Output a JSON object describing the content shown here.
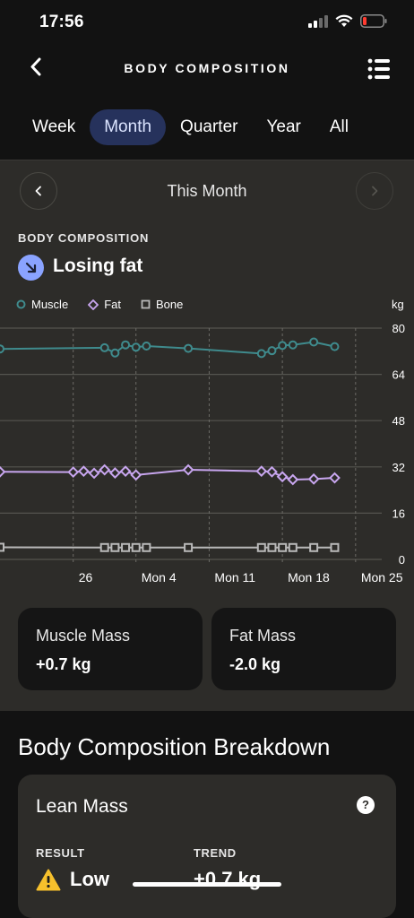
{
  "status": {
    "time": "17:56"
  },
  "header": {
    "title": "BODY COMPOSITION"
  },
  "tabs": [
    {
      "label": "Week",
      "active": false
    },
    {
      "label": "Month",
      "active": true
    },
    {
      "label": "Quarter",
      "active": false
    },
    {
      "label": "Year",
      "active": false
    },
    {
      "label": "All",
      "active": false
    }
  ],
  "period": {
    "label": "This Month"
  },
  "summary": {
    "eyebrow": "BODY COMPOSITION",
    "trend": "Losing fat"
  },
  "legend": {
    "muscle": "Muscle",
    "fat": "Fat",
    "bone": "Bone",
    "unit": "kg"
  },
  "colors": {
    "muscle": "#3f8b8d",
    "fat": "#c8a6ef",
    "bone": "#b9b9b9",
    "accent": "#26325c",
    "trend_icon": "#8aa3ff"
  },
  "chart_data": {
    "type": "line",
    "ylabel": "kg",
    "ylim": [
      0,
      80
    ],
    "yticks": [
      0,
      16,
      32,
      48,
      64,
      80
    ],
    "xlim": [
      -9,
      27.5
    ],
    "xticks": [
      {
        "label": "26",
        "day": -2
      },
      {
        "label": "Mon 4",
        "day": 4
      },
      {
        "label": "Mon 11",
        "day": 11
      },
      {
        "label": "Mon 18",
        "day": 18
      },
      {
        "label": "Mon 25",
        "day": 25
      }
    ],
    "grid": true,
    "legend_position": "top-left",
    "series": [
      {
        "name": "Muscle",
        "marker": "circle",
        "points": [
          [
            -9,
            72.8
          ],
          [
            1,
            73.2
          ],
          [
            2,
            71.4
          ],
          [
            3,
            74.2
          ],
          [
            4,
            73.4
          ],
          [
            5,
            73.8
          ],
          [
            9,
            73.0
          ],
          [
            16,
            71.2
          ],
          [
            17,
            72.2
          ],
          [
            18,
            74.0
          ],
          [
            19,
            74.2
          ],
          [
            21,
            75.2
          ],
          [
            23,
            73.6
          ]
        ]
      },
      {
        "name": "Fat",
        "marker": "diamond",
        "points": [
          [
            -9,
            30.3
          ],
          [
            -2,
            30.2
          ],
          [
            -1,
            30.5
          ],
          [
            0,
            29.8
          ],
          [
            1,
            31.0
          ],
          [
            2,
            29.9
          ],
          [
            3,
            30.5
          ],
          [
            4,
            29.2
          ],
          [
            9,
            31.0
          ],
          [
            16,
            30.5
          ],
          [
            17,
            30.3
          ],
          [
            18,
            28.6
          ],
          [
            19,
            27.6
          ],
          [
            21,
            27.8
          ],
          [
            23,
            28.2
          ]
        ]
      },
      {
        "name": "Bone",
        "marker": "square",
        "points": [
          [
            -9,
            4.2
          ],
          [
            1,
            4.1
          ],
          [
            2,
            4.1
          ],
          [
            3,
            4.1
          ],
          [
            4,
            4.1
          ],
          [
            5,
            4.1
          ],
          [
            9,
            4.1
          ],
          [
            16,
            4.1
          ],
          [
            17,
            4.1
          ],
          [
            18,
            4.1
          ],
          [
            19,
            4.1
          ],
          [
            21,
            4.1
          ],
          [
            23,
            4.1
          ]
        ]
      }
    ]
  },
  "cards": {
    "muscle": {
      "label": "Muscle Mass",
      "value": "+0.7 kg"
    },
    "fat": {
      "label": "Fat Mass",
      "value": "-2.0 kg"
    }
  },
  "breakdown": {
    "title": "Body Composition Breakdown",
    "lean": {
      "title": "Lean Mass",
      "result_label": "RESULT",
      "result_value": "Low",
      "trend_label": "TREND",
      "trend_value": "+0.7 kg"
    }
  }
}
